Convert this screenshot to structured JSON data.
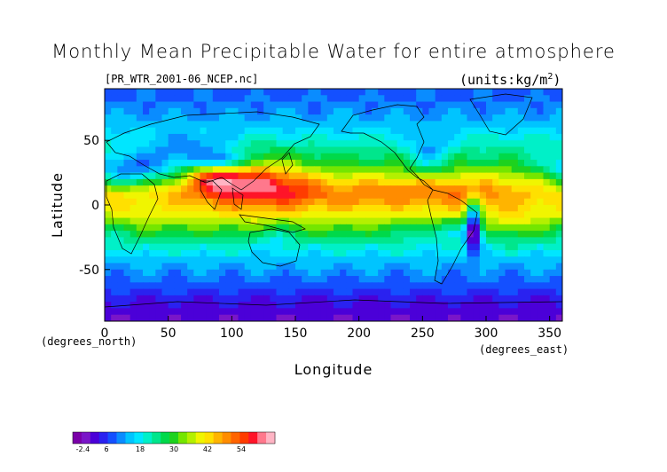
{
  "chart_data": {
    "type": "heatmap",
    "title": "Monthly Mean Precipitable Water for entire atmosphere",
    "subtitle_left": "[PR_WTR_2001-06_NCEP.nc]",
    "subtitle_right": "(units:kg/m^2)",
    "xlabel": "Longitude",
    "ylabel": "Latitude",
    "x_unit_label": "(degrees_east)",
    "y_unit_label": "(degrees_north)",
    "xlim": [
      0,
      360
    ],
    "ylim": [
      -90,
      90
    ],
    "x_ticks": [
      "0",
      "50",
      "100",
      "150",
      "200",
      "250",
      "300",
      "350"
    ],
    "x_tick_values": [
      0,
      50,
      100,
      150,
      200,
      250,
      300,
      350
    ],
    "y_ticks": [
      "50",
      "0",
      "-50"
    ],
    "y_tick_values": [
      50,
      0,
      -50
    ],
    "colorbar": {
      "labels": [
        "-2.4",
        "6",
        "18",
        "30",
        "42",
        "54"
      ],
      "label_values": [
        -2.4,
        6,
        18,
        30,
        42,
        54
      ],
      "min": -6,
      "max": 66,
      "colors": [
        "#7a00a8",
        "#7a16c8",
        "#4b00d8",
        "#2a22f0",
        "#1450ff",
        "#0a8cff",
        "#00c4ff",
        "#00e6ff",
        "#00f0c8",
        "#00e68c",
        "#00d94a",
        "#1ed21e",
        "#74e600",
        "#b4f000",
        "#f0f500",
        "#ffe000",
        "#ffb400",
        "#ff8c00",
        "#ff6400",
        "#ff3c00",
        "#ff1428",
        "#ff788c",
        "#ffb4c4"
      ]
    },
    "zonal_profile": {
      "lat": [
        -90,
        -80,
        -70,
        -60,
        -50,
        -40,
        -30,
        -20,
        -10,
        0,
        10,
        20,
        30,
        40,
        50,
        60,
        70,
        80,
        90
      ],
      "value": [
        1,
        2,
        5,
        9,
        12,
        16,
        22,
        30,
        38,
        42,
        46,
        40,
        30,
        24,
        20,
        16,
        12,
        10,
        8
      ]
    }
  }
}
